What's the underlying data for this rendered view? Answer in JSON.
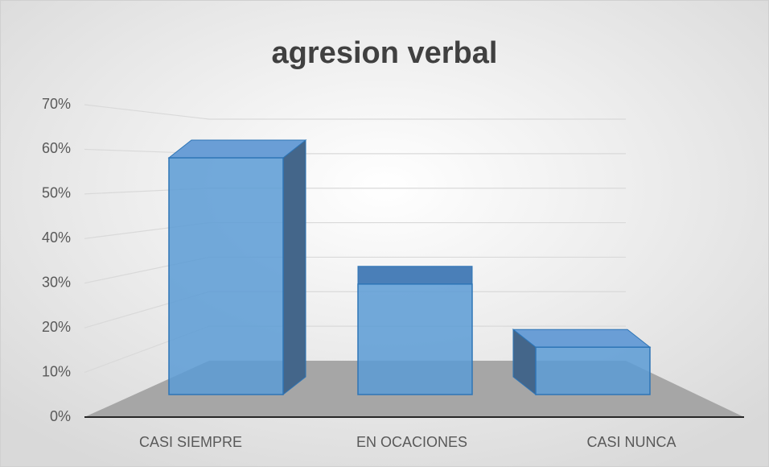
{
  "chart_data": {
    "type": "bar3d",
    "title": "agresion verbal",
    "categories": [
      "CASI SIEMPRE",
      "EN OCACIONES",
      "CASI NUNCA"
    ],
    "values": [
      60,
      28,
      12
    ],
    "color": "#5b9bd5",
    "ylim": [
      0,
      70
    ],
    "yticks": [
      {
        "value": 0,
        "label": "0%"
      },
      {
        "value": 10,
        "label": "10%"
      },
      {
        "value": 20,
        "label": "20%"
      },
      {
        "value": 30,
        "label": "30%"
      },
      {
        "value": 40,
        "label": "40%"
      },
      {
        "value": 50,
        "label": "50%"
      },
      {
        "value": 60,
        "label": "60%"
      },
      {
        "value": 70,
        "label": "70%"
      }
    ],
    "grid": true
  }
}
